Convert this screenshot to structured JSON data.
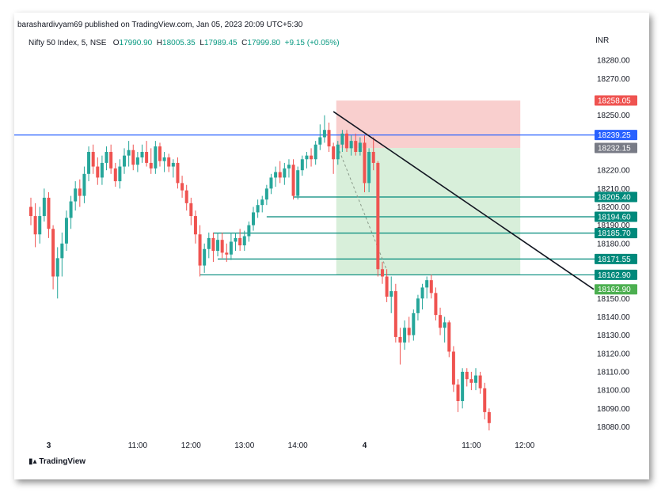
{
  "header": {
    "publisher_line": "barashardivyam69 published on TradingView.com, Jan 05, 2023 20:09 UTC+5:30",
    "symbol": "Nifty 50 Index, 5, NSE",
    "open_label": "O",
    "open": "17990.90",
    "high_label": "H",
    "high": "18005.35",
    "low_label": "L",
    "low": "17989.45",
    "close_label": "C",
    "close": "17999.80",
    "change": "+9.15 (+0.05%)",
    "currency": "INR"
  },
  "footer": {
    "logo_text": "TradingView"
  },
  "colors": {
    "up": "#26a69a",
    "down": "#ef5350",
    "hline_blue": "#2962ff",
    "level_teal": "#00897b",
    "stop_zone": "#f8c7c5",
    "target_zone": "#d4edd6",
    "trendline": "#131722",
    "axis_text": "#131722"
  },
  "chart_data": {
    "type": "candlestick",
    "symbol": "Nifty 50 Index",
    "timeframe": "5",
    "exchange": "NSE",
    "ylim": [
      18075,
      18287
    ],
    "y_ticks": [
      18080,
      18090,
      18100,
      18110,
      18120,
      18130,
      18140,
      18150,
      18160,
      18170,
      18180,
      18190,
      18200,
      18210,
      18220,
      18230,
      18240,
      18250,
      18260,
      18270,
      18280
    ],
    "y_tick_labels": [
      "18080.00",
      "18090.00",
      "18100.00",
      "18110.00",
      "18120.00",
      "18130.00",
      "18140.00",
      "18150.00",
      "",
      "",
      "18180.00",
      "18190.00",
      "18200.00",
      "18210.00",
      "18220.00",
      "",
      "",
      "18250.00",
      "",
      "18270.00",
      "18280.00"
    ],
    "x_ticks": [
      {
        "bar": 4,
        "label": "3",
        "bold": true
      },
      {
        "bar": 24,
        "label": "11:00",
        "bold": false
      },
      {
        "bar": 36,
        "label": "12:00",
        "bold": false
      },
      {
        "bar": 48,
        "label": "13:00",
        "bold": false
      },
      {
        "bar": 60,
        "label": "14:00",
        "bold": false
      },
      {
        "bar": 75,
        "label": "4",
        "bold": true
      },
      {
        "bar": 99,
        "label": "11:00",
        "bold": false
      },
      {
        "bar": 111,
        "label": "12:00",
        "bold": false
      }
    ],
    "candles": [
      [
        18200,
        18205,
        18190,
        18195
      ],
      [
        18195,
        18202,
        18178,
        18185
      ],
      [
        18185,
        18200,
        18180,
        18195
      ],
      [
        18195,
        18210,
        18192,
        18205
      ],
      [
        18205,
        18208,
        18183,
        18188
      ],
      [
        18188,
        18190,
        18155,
        18162
      ],
      [
        18162,
        18178,
        18150,
        18172
      ],
      [
        18172,
        18186,
        18162,
        18180
      ],
      [
        18180,
        18198,
        18176,
        18194
      ],
      [
        18194,
        18206,
        18188,
        18203
      ],
      [
        18203,
        18214,
        18198,
        18210
      ],
      [
        18210,
        18215,
        18200,
        18206
      ],
      [
        18206,
        18222,
        18202,
        18218
      ],
      [
        18218,
        18233,
        18214,
        18230
      ],
      [
        18230,
        18234,
        18218,
        18222
      ],
      [
        18222,
        18227,
        18212,
        18216
      ],
      [
        18216,
        18228,
        18212,
        18224
      ],
      [
        18224,
        18233,
        18220,
        18230
      ],
      [
        18230,
        18234,
        18218,
        18221
      ],
      [
        18221,
        18224,
        18211,
        18214
      ],
      [
        18214,
        18226,
        18210,
        18222
      ],
      [
        18222,
        18232,
        18218,
        18228
      ],
      [
        18228,
        18236,
        18222,
        18231
      ],
      [
        18231,
        18234,
        18220,
        18223
      ],
      [
        18223,
        18230,
        18219,
        18227
      ],
      [
        18227,
        18234,
        18224,
        18230
      ],
      [
        18230,
        18236,
        18222,
        18224
      ],
      [
        18224,
        18232,
        18218,
        18221
      ],
      [
        18221,
        18236,
        18218,
        18233
      ],
      [
        18233,
        18235,
        18222,
        18225
      ],
      [
        18225,
        18230,
        18219,
        18227
      ],
      [
        18227,
        18229,
        18219,
        18222
      ],
      [
        18222,
        18226,
        18216,
        18224
      ],
      [
        18224,
        18227,
        18210,
        18213
      ],
      [
        18213,
        18217,
        18205,
        18209
      ],
      [
        18209,
        18212,
        18198,
        18202
      ],
      [
        18202,
        18205,
        18190,
        18195
      ],
      [
        18195,
        18198,
        18180,
        18185
      ],
      [
        18185,
        18190,
        18162,
        18168
      ],
      [
        18168,
        18180,
        18164,
        18177
      ],
      [
        18177,
        18186,
        18172,
        18183
      ],
      [
        18183,
        18186,
        18170,
        18176
      ],
      [
        18176,
        18186,
        18173,
        18182
      ],
      [
        18182,
        18186,
        18172,
        18175
      ],
      [
        18175,
        18180,
        18170,
        18174
      ],
      [
        18174,
        18186,
        18171,
        18181
      ],
      [
        18181,
        18186,
        18176,
        18183
      ],
      [
        18183,
        18188,
        18176,
        18179
      ],
      [
        18179,
        18187,
        18176,
        18184
      ],
      [
        18184,
        18192,
        18181,
        18190
      ],
      [
        18190,
        18200,
        18187,
        18197
      ],
      [
        18197,
        18204,
        18194,
        18201
      ],
      [
        18201,
        18206,
        18197,
        18204
      ],
      [
        18204,
        18212,
        18201,
        18210
      ],
      [
        18210,
        18218,
        18207,
        18216
      ],
      [
        18216,
        18222,
        18211,
        18219
      ],
      [
        18219,
        18225,
        18213,
        18216
      ],
      [
        18216,
        18224,
        18212,
        18221
      ],
      [
        18221,
        18226,
        18216,
        18223
      ],
      [
        18223,
        18226,
        18204,
        18206
      ],
      [
        18206,
        18222,
        18204,
        18220
      ],
      [
        18220,
        18228,
        18217,
        18226
      ],
      [
        18226,
        18230,
        18221,
        18228
      ],
      [
        18228,
        18232,
        18222,
        18226
      ],
      [
        18226,
        18236,
        18223,
        18234
      ],
      [
        18234,
        18245,
        18231,
        18238
      ],
      [
        18238,
        18250,
        18235,
        18242
      ],
      [
        18242,
        18246,
        18230,
        18233
      ],
      [
        18233,
        18235,
        18218,
        18226
      ],
      [
        18226,
        18236,
        18223,
        18234
      ],
      [
        18234,
        18242,
        18230,
        18240
      ],
      [
        18240,
        18242,
        18230,
        18232
      ],
      [
        18232,
        18239,
        18228,
        18236
      ],
      [
        18236,
        18240,
        18228,
        18230
      ],
      [
        18230,
        18238,
        18228,
        18235
      ],
      [
        18235,
        18239,
        18208,
        18213
      ],
      [
        18213,
        18232,
        18208,
        18230
      ],
      [
        18230,
        18238,
        18220,
        18224
      ],
      [
        18224,
        18225,
        18162,
        18166
      ],
      [
        18166,
        18170,
        18158,
        18162
      ],
      [
        18162,
        18166,
        18148,
        18151
      ],
      [
        18151,
        18162,
        18142,
        18154
      ],
      [
        18154,
        18158,
        18126,
        18129
      ],
      [
        18129,
        18134,
        18114,
        18126
      ],
      [
        18126,
        18138,
        18122,
        18134
      ],
      [
        18134,
        18140,
        18126,
        18130
      ],
      [
        18130,
        18144,
        18127,
        18142
      ],
      [
        18142,
        18152,
        18138,
        18150
      ],
      [
        18150,
        18158,
        18144,
        18156
      ],
      [
        18156,
        18162,
        18150,
        18160
      ],
      [
        18160,
        18163,
        18150,
        18153
      ],
      [
        18153,
        18156,
        18138,
        18141
      ],
      [
        18141,
        18145,
        18130,
        18134
      ],
      [
        18134,
        18140,
        18126,
        18137
      ],
      [
        18137,
        18138,
        18118,
        18121
      ],
      [
        18121,
        18124,
        18099,
        18103
      ],
      [
        18103,
        18106,
        18088,
        18094
      ],
      [
        18094,
        18112,
        18090,
        18110
      ],
      [
        18110,
        18112,
        18102,
        18106
      ],
      [
        18106,
        18110,
        18100,
        18104
      ],
      [
        18104,
        18112,
        18100,
        18108
      ],
      [
        18108,
        18110,
        18098,
        18101
      ],
      [
        18101,
        18104,
        18084,
        18088
      ],
      [
        18088,
        18090,
        18078,
        18082
      ]
    ],
    "price_levels": [
      {
        "value": 18239.25,
        "label": "18239.25",
        "style": "blue-full",
        "from_bar": 0
      },
      {
        "value": 18205.4,
        "label": "18205.40",
        "style": "teal",
        "from_bar": 59
      },
      {
        "value": 18194.6,
        "label": "18194.60",
        "style": "teal",
        "from_bar": 53
      },
      {
        "value": 18185.7,
        "label": "18185.70",
        "style": "teal",
        "from_bar": 41
      },
      {
        "value": 18171.55,
        "label": "18171.55",
        "style": "teal",
        "from_bar": 42
      },
      {
        "value": 18162.9,
        "label": "18162.90",
        "style": "teal",
        "from_bar": 38
      }
    ],
    "axis_badges": [
      {
        "value": 18258.05,
        "label": "18258.05",
        "color": "#ef5350"
      },
      {
        "value": 18239.25,
        "label": "18239.25",
        "color": "#2962ff"
      },
      {
        "value": 18232.15,
        "label": "18232.15",
        "color": "#787b86"
      },
      {
        "value": 18205.4,
        "label": "18205.40",
        "color": "#00897b"
      },
      {
        "value": 18194.6,
        "label": "18194.60",
        "color": "#00897b"
      },
      {
        "value": 18185.7,
        "label": "18185.70",
        "color": "#00897b"
      },
      {
        "value": 18171.55,
        "label": "18171.55",
        "color": "#00897b"
      },
      {
        "value": 18162.9,
        "label": "18162.90",
        "color": "#00897b"
      },
      {
        "value": 18155.0,
        "label": "18162.90",
        "color": "#4caf50"
      }
    ],
    "short_position": {
      "from_bar": 69,
      "to_bar": 110,
      "stop": 18258.05,
      "entry": 18232.15,
      "target": 18162.9
    },
    "trendline": {
      "from_bar": 68,
      "from_value": 18252,
      "to_value": 18155
    }
  }
}
